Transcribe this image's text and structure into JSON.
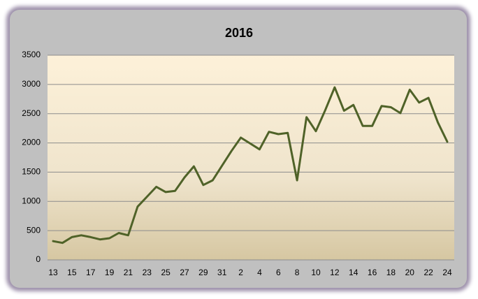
{
  "chart_data": {
    "type": "line",
    "title": "2016",
    "categories": [
      "13",
      null,
      "15",
      null,
      "17",
      null,
      "19",
      null,
      "21",
      null,
      "23",
      null,
      "25",
      null,
      "27",
      null,
      "29",
      null,
      "31",
      null,
      "2",
      null,
      "4",
      null,
      "6",
      null,
      "8",
      null,
      "10",
      null,
      "12",
      null,
      "14",
      null,
      "16",
      null,
      "18",
      null,
      "20",
      null,
      "22",
      null,
      "24"
    ],
    "values": [
      320,
      290,
      390,
      420,
      390,
      350,
      370,
      460,
      420,
      910,
      1080,
      1250,
      1160,
      1180,
      1410,
      1600,
      1280,
      1360,
      1610,
      1860,
      2090,
      1990,
      1890,
      2190,
      2150,
      2170,
      1360,
      2440,
      2200,
      2560,
      2950,
      2550,
      2650,
      2290,
      2290,
      2630,
      2610,
      2510,
      2910,
      2690,
      2770,
      2350,
      2020
    ],
    "color": "#4f6228",
    "ylim": [
      0,
      3500
    ],
    "yticks": [
      0,
      500,
      1000,
      1500,
      2000,
      2500,
      3000,
      3500
    ],
    "grid": true
  }
}
